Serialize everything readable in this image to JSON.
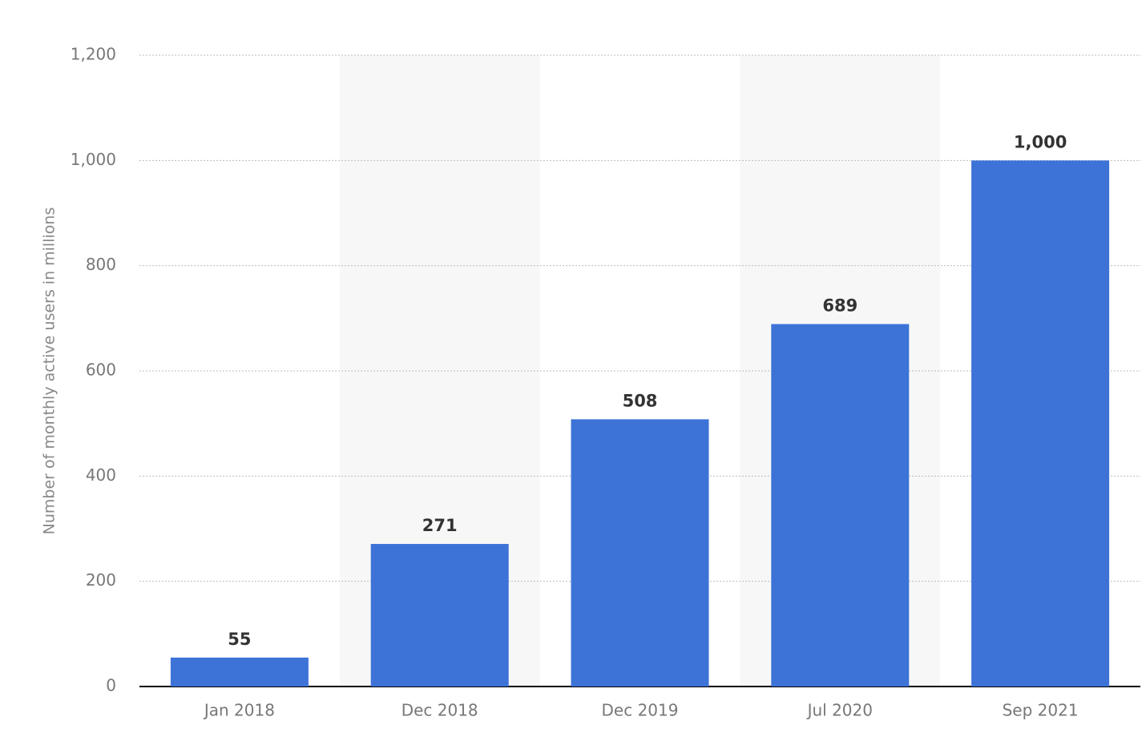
{
  "chart_data": {
    "type": "bar",
    "y_axis_label": "Number of monthly active users in millions",
    "categories": [
      "Jan 2018",
      "Dec 2018",
      "Dec 2019",
      "Jul 2020",
      "Sep 2021"
    ],
    "values": [
      55,
      271,
      508,
      689,
      1000
    ],
    "value_labels": [
      "55",
      "271",
      "508",
      "689",
      "1,000"
    ],
    "color": "#3d73d7",
    "ylim": [
      0,
      1200
    ],
    "yticks": [
      0,
      200,
      400,
      600,
      800,
      {
        "value": 1000,
        "label": "1,000"
      },
      {
        "value": 1200,
        "label": "1,200"
      }
    ],
    "grid": true
  }
}
